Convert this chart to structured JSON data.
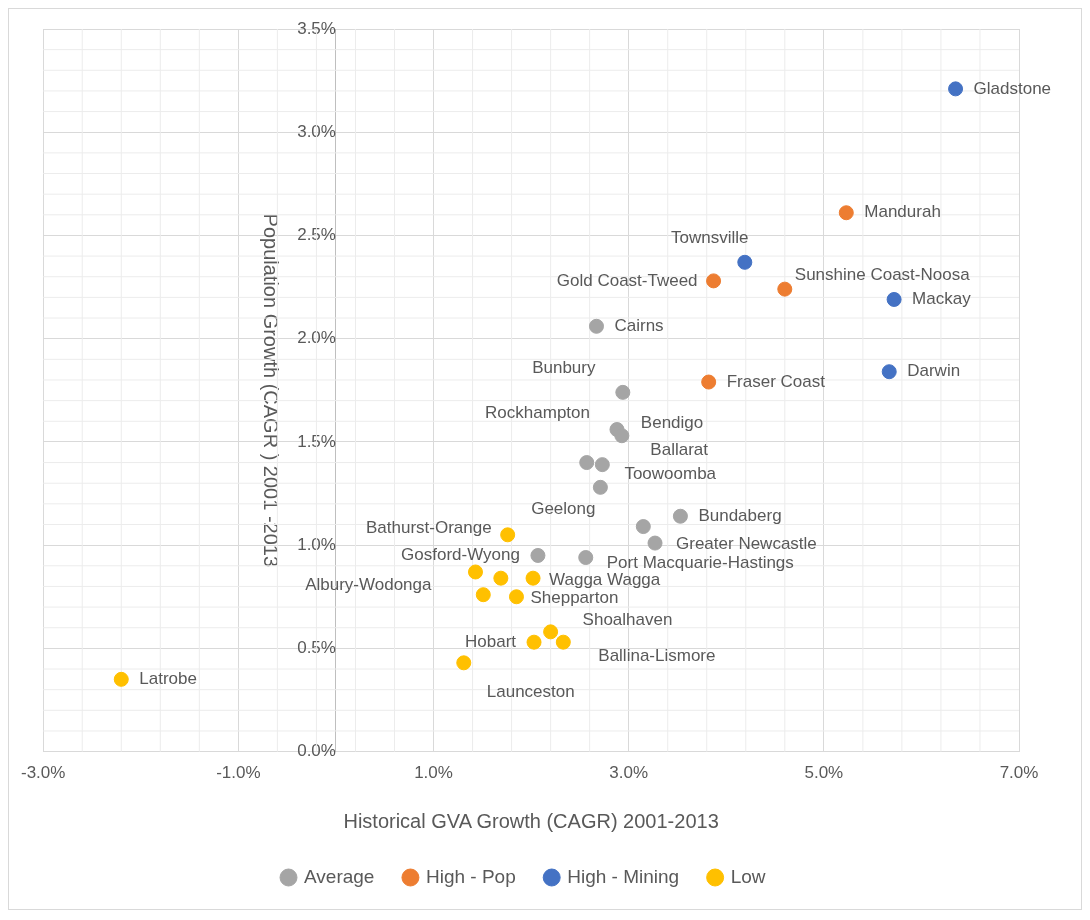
{
  "chart_data": {
    "type": "scatter",
    "xlabel": "Historical GVA Growth (CAGR) 2001-2013",
    "ylabel": "Population Growth (CAGR ) 2001 -2013",
    "xlim": [
      -3,
      7
    ],
    "xticks": [
      {
        "value": -3,
        "label": "-3.0%"
      },
      {
        "value": -1,
        "label": "-1.0%"
      },
      {
        "value": 1,
        "label": "1.0%"
      },
      {
        "value": 3,
        "label": "3.0%"
      },
      {
        "value": 5,
        "label": "5.0%"
      },
      {
        "value": 7,
        "label": "7.0%"
      }
    ],
    "ylim": [
      0,
      3.5
    ],
    "yticks": [
      {
        "value": 0,
        "label": "0.0%"
      },
      {
        "value": 0.5,
        "label": "0.5%"
      },
      {
        "value": 1,
        "label": "1.0%"
      },
      {
        "value": 1.5,
        "label": "1.5%"
      },
      {
        "value": 2,
        "label": "2.0%"
      },
      {
        "value": 2.5,
        "label": "2.5%"
      },
      {
        "value": 3,
        "label": "3.0%"
      },
      {
        "value": 3.5,
        "label": "3.5%"
      }
    ],
    "grid": true,
    "legend": "bottom",
    "marker": "circle",
    "series": [
      {
        "name": "Average",
        "color": "#a5a5a5",
        "x": [
          2.67,
          2.94,
          2.88,
          2.93,
          2.57,
          2.73,
          2.71,
          3.15,
          3.53,
          3.27,
          2.56,
          2.07
        ],
        "values": [
          2.06,
          1.74,
          1.56,
          1.53,
          1.4,
          1.39,
          1.28,
          1.09,
          1.14,
          1.01,
          0.94,
          0.95
        ]
      },
      {
        "name": "High - Pop",
        "color": "#ed7d31",
        "x": [
          5.23,
          3.87,
          4.6,
          3.82
        ],
        "values": [
          2.61,
          2.28,
          2.24,
          1.79
        ]
      },
      {
        "name": "High - Mining",
        "color": "#4472c4",
        "x": [
          6.35,
          4.19,
          5.72,
          5.67
        ],
        "values": [
          3.21,
          2.37,
          2.19,
          1.84
        ]
      },
      {
        "name": "Low",
        "color": "#ffc000",
        "x": [
          1.76,
          1.43,
          1.69,
          2.02,
          1.51,
          1.85,
          2.2,
          2.03,
          2.33,
          1.31,
          -2.2
        ],
        "values": [
          1.05,
          0.87,
          0.84,
          0.84,
          0.76,
          0.75,
          0.58,
          0.53,
          0.53,
          0.43,
          0.35
        ]
      }
    ],
    "annotations": [
      {
        "text": "Gladstone",
        "x": 6.35,
        "y": 3.21
      },
      {
        "text": "Mandurah",
        "x": 5.23,
        "y": 2.61
      },
      {
        "text": "Townsville",
        "x": 4.19,
        "y": 2.37
      },
      {
        "text": "Gold Coast-Tweed",
        "x": 3.87,
        "y": 2.28
      },
      {
        "text": "Sunshine Coast-Noosa",
        "x": 4.6,
        "y": 2.24
      },
      {
        "text": "Mackay",
        "x": 5.72,
        "y": 2.19
      },
      {
        "text": "Cairns",
        "x": 2.67,
        "y": 2.06
      },
      {
        "text": "Darwin",
        "x": 5.67,
        "y": 1.84
      },
      {
        "text": "Fraser Coast",
        "x": 3.82,
        "y": 1.79
      },
      {
        "text": "Bunbury",
        "x": 2.94,
        "y": 1.74
      },
      {
        "text": "Rockhampton",
        "x": 2.88,
        "y": 1.56
      },
      {
        "text": "Bendigo",
        "x": 2.93,
        "y": 1.53
      },
      {
        "text": "Ballarat",
        "x": 2.73,
        "y": 1.39
      },
      {
        "text": "Toowoomba",
        "x": 2.71,
        "y": 1.28
      },
      {
        "text": "Geelong",
        "x": 3.15,
        "y": 1.09
      },
      {
        "text": "Bundaberg",
        "x": 3.53,
        "y": 1.14
      },
      {
        "text": "Greater Newcastle",
        "x": 3.27,
        "y": 1.01
      },
      {
        "text": "Port Macquarie-Hastings",
        "x": 2.56,
        "y": 0.94
      },
      {
        "text": "Gosford-Wyong",
        "x": 2.07,
        "y": 0.95
      },
      {
        "text": "Bathurst-Orange",
        "x": 1.76,
        "y": 1.05
      },
      {
        "text": "Albury-Wodonga",
        "x": 1.43,
        "y": 0.87
      },
      {
        "text": "Wagga Wagga",
        "x": 2.02,
        "y": 0.84
      },
      {
        "text": "Shepparton",
        "x": 1.85,
        "y": 0.75
      },
      {
        "text": "Shoalhaven",
        "x": 2.2,
        "y": 0.58
      },
      {
        "text": "Hobart",
        "x": 2.03,
        "y": 0.53
      },
      {
        "text": "Ballina-Lismore",
        "x": 2.33,
        "y": 0.53
      },
      {
        "text": "Launceston",
        "x": 1.31,
        "y": 0.43
      },
      {
        "text": "Latrobe",
        "x": -2.2,
        "y": 0.35
      }
    ]
  }
}
